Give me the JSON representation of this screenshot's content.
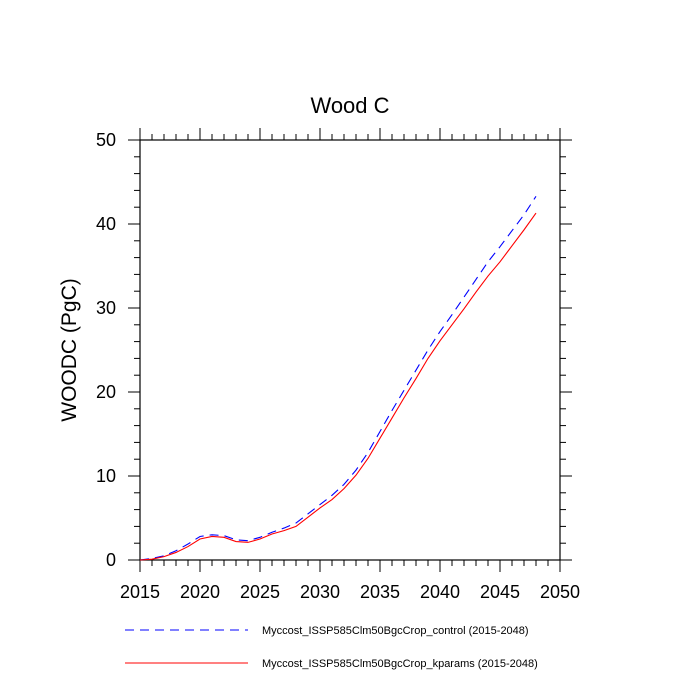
{
  "chart_data": {
    "type": "line",
    "title": "Wood C",
    "xlabel": "",
    "ylabel": "WOODC  (PgC)",
    "xlim": [
      2015,
      2050
    ],
    "ylim": [
      0,
      50
    ],
    "xticks": [
      2015,
      2020,
      2025,
      2030,
      2035,
      2040,
      2045,
      2050
    ],
    "yticks": [
      0,
      10,
      20,
      30,
      40,
      50
    ],
    "grid": false,
    "legend_position": "bottom",
    "series": [
      {
        "name": "Myccost_ISSP585Clm50BgcCrop_control (2015-2048)",
        "color": "#0000ff",
        "dash": "dashed",
        "x": [
          2015,
          2016,
          2017,
          2018,
          2019,
          2020,
          2021,
          2022,
          2023,
          2024,
          2025,
          2026,
          2027,
          2028,
          2029,
          2030,
          2031,
          2032,
          2033,
          2034,
          2035,
          2036,
          2037,
          2038,
          2039,
          2040,
          2041,
          2042,
          2043,
          2044,
          2045,
          2046,
          2047,
          2048
        ],
        "y": [
          0.0,
          0.2,
          0.5,
          1.1,
          1.9,
          2.8,
          3.0,
          2.9,
          2.4,
          2.3,
          2.7,
          3.3,
          3.8,
          4.4,
          5.5,
          6.6,
          7.7,
          9.0,
          10.7,
          12.8,
          15.3,
          17.8,
          20.2,
          22.6,
          25.0,
          27.2,
          29.2,
          31.3,
          33.4,
          35.5,
          37.3,
          39.2,
          41.1,
          43.3
        ]
      },
      {
        "name": "Myccost_ISSP585Clm50BgcCrop_kparams (2015-2048)",
        "color": "#ff0000",
        "dash": "solid",
        "x": [
          2015,
          2016,
          2017,
          2018,
          2019,
          2020,
          2021,
          2022,
          2023,
          2024,
          2025,
          2026,
          2027,
          2028,
          2029,
          2030,
          2031,
          2032,
          2033,
          2034,
          2035,
          2036,
          2037,
          2038,
          2039,
          2040,
          2041,
          2042,
          2043,
          2044,
          2045,
          2046,
          2047,
          2048
        ],
        "y": [
          0.0,
          0.1,
          0.4,
          0.9,
          1.6,
          2.5,
          2.8,
          2.7,
          2.2,
          2.1,
          2.5,
          3.1,
          3.5,
          4.0,
          5.1,
          6.2,
          7.2,
          8.5,
          10.1,
          12.1,
          14.5,
          16.9,
          19.3,
          21.6,
          24.0,
          26.1,
          28.0,
          29.9,
          31.9,
          33.8,
          35.5,
          37.4,
          39.3,
          41.3
        ]
      }
    ]
  }
}
